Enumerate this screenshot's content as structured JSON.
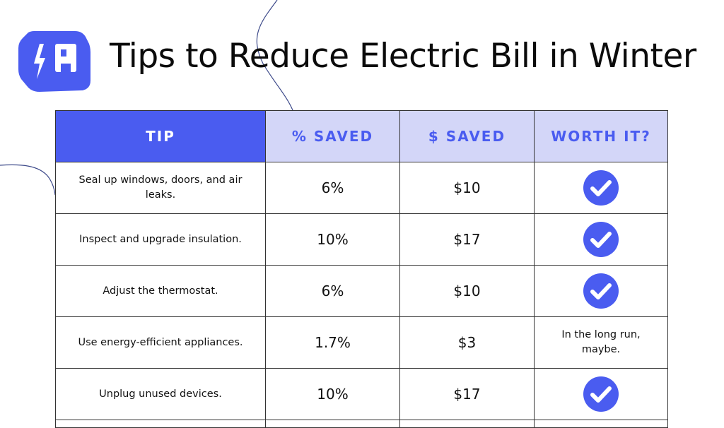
{
  "header": {
    "title": "Tips to Reduce Electric Bill in Winter"
  },
  "table": {
    "columns": [
      "TIP",
      "% SAVED",
      "$ SAVED",
      "WORTH IT?"
    ],
    "rows": [
      {
        "tip": "Seal up windows, doors, and air leaks.",
        "percent_saved": "6%",
        "dollars_saved": "$10",
        "worth_it": true
      },
      {
        "tip": "Inspect and upgrade insulation.",
        "percent_saved": "10%",
        "dollars_saved": "$17",
        "worth_it": true
      },
      {
        "tip": "Adjust the thermostat.",
        "percent_saved": "6%",
        "dollars_saved": "$10",
        "worth_it": true
      },
      {
        "tip": "Use energy-efficient appliances.",
        "percent_saved": "1.7%",
        "dollars_saved": "$3",
        "worth_it": "In the long run, maybe."
      },
      {
        "tip": "Unplug unused devices.",
        "percent_saved": "10%",
        "dollars_saved": "$17",
        "worth_it": true
      }
    ]
  }
}
